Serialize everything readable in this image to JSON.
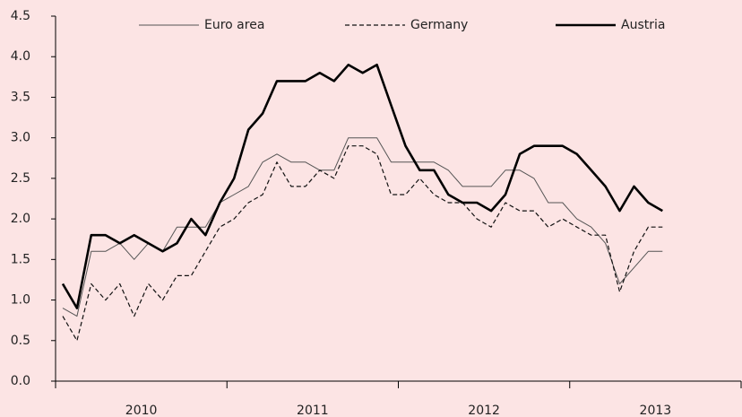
{
  "chart_data": {
    "type": "line",
    "year_labels": [
      "2010",
      "2011",
      "2012",
      "2013"
    ],
    "months_per_year": 12,
    "ylim": [
      0,
      4.5
    ],
    "yticks": [
      {
        "value": 0,
        "label": "0.0"
      },
      {
        "value": 0.5,
        "label": "0.5"
      },
      {
        "value": 1,
        "label": "1.0"
      },
      {
        "value": 1.5,
        "label": "1.5"
      },
      {
        "value": 2,
        "label": "2.0"
      },
      {
        "value": 2.5,
        "label": "2.5"
      },
      {
        "value": 3,
        "label": "3.0"
      },
      {
        "value": 3.5,
        "label": "3.5"
      },
      {
        "value": 4,
        "label": "4.0"
      },
      {
        "value": 4.5,
        "label": "4.5"
      }
    ],
    "grid": false,
    "legend": "top",
    "series": [
      {
        "name": "Euro area",
        "color": "#555555",
        "line_width": 1,
        "line_style": "solid",
        "values": [
          0.9,
          0.8,
          1.6,
          1.6,
          1.7,
          1.5,
          1.7,
          1.6,
          1.9,
          1.9,
          1.9,
          2.2,
          2.3,
          2.4,
          2.7,
          2.8,
          2.7,
          2.7,
          2.6,
          2.6,
          3.0,
          3.0,
          3.0,
          2.7,
          2.7,
          2.7,
          2.7,
          2.6,
          2.4,
          2.4,
          2.4,
          2.6,
          2.6,
          2.5,
          2.2,
          2.2,
          2.0,
          1.9,
          1.7,
          1.2,
          1.4,
          1.6,
          1.6
        ]
      },
      {
        "name": "Germany",
        "color": "#111111",
        "line_width": 1.2,
        "line_style": "dashed",
        "values": [
          0.8,
          0.5,
          1.2,
          1.0,
          1.2,
          0.8,
          1.2,
          1.0,
          1.3,
          1.3,
          1.6,
          1.9,
          2.0,
          2.2,
          2.3,
          2.7,
          2.4,
          2.4,
          2.6,
          2.5,
          2.9,
          2.9,
          2.8,
          2.3,
          2.3,
          2.5,
          2.3,
          2.2,
          2.2,
          2.0,
          1.9,
          2.2,
          2.1,
          2.1,
          1.9,
          2.0,
          1.9,
          1.8,
          1.8,
          1.1,
          1.6,
          1.9,
          1.9
        ]
      },
      {
        "name": "Austria",
        "color": "#000000",
        "line_width": 2.6,
        "line_style": "solid",
        "values": [
          1.2,
          0.9,
          1.8,
          1.8,
          1.7,
          1.8,
          1.7,
          1.6,
          1.7,
          2.0,
          1.8,
          2.2,
          2.5,
          3.1,
          3.3,
          3.7,
          3.7,
          3.7,
          3.8,
          3.7,
          3.9,
          3.8,
          3.9,
          3.4,
          2.9,
          2.6,
          2.6,
          2.3,
          2.2,
          2.2,
          2.1,
          2.3,
          2.8,
          2.9,
          2.9,
          2.9,
          2.8,
          2.6,
          2.4,
          2.1,
          2.4,
          2.2,
          2.1
        ]
      }
    ]
  }
}
